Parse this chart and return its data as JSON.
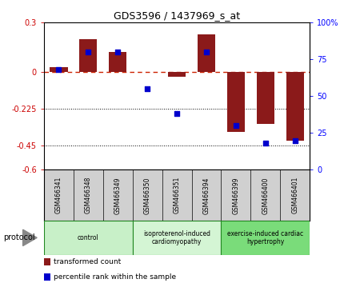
{
  "title": "GDS3596 / 1437969_s_at",
  "samples": [
    "GSM466341",
    "GSM466348",
    "GSM466349",
    "GSM466350",
    "GSM466351",
    "GSM466394",
    "GSM466399",
    "GSM466400",
    "GSM466401"
  ],
  "bar_values": [
    0.03,
    0.2,
    0.12,
    0.0,
    -0.03,
    0.23,
    -0.37,
    -0.32,
    -0.42
  ],
  "dot_values_pct": [
    68,
    80,
    80,
    55,
    38,
    80,
    30,
    18,
    20
  ],
  "groups": [
    {
      "label": "control",
      "start": 0,
      "end": 3,
      "color": "#c8f0c8"
    },
    {
      "label": "isoproterenol-induced\ncardiomyopathy",
      "start": 3,
      "end": 6,
      "color": "#d4f5d4"
    },
    {
      "label": "exercise-induced cardiac\nhypertrophy",
      "start": 6,
      "end": 9,
      "color": "#7adc7a"
    }
  ],
  "bar_color": "#8b1a1a",
  "dot_color": "#0000cc",
  "ylim_left": [
    -0.6,
    0.3
  ],
  "ylim_right": [
    0,
    100
  ],
  "yticks_left": [
    0.3,
    0.0,
    -0.225,
    -0.45,
    -0.6
  ],
  "ytick_labels_left": [
    "0.3",
    "0",
    "-0.225",
    "-0.45",
    "-0.6"
  ],
  "yticks_right": [
    100,
    75,
    50,
    25,
    0
  ],
  "hline_y": 0.0,
  "dotted_lines": [
    -0.225,
    -0.45
  ],
  "legend_labels": [
    "transformed count",
    "percentile rank within the sample"
  ],
  "legend_colors": [
    "#8b1a1a",
    "#0000cc"
  ],
  "protocol_label": "protocol"
}
